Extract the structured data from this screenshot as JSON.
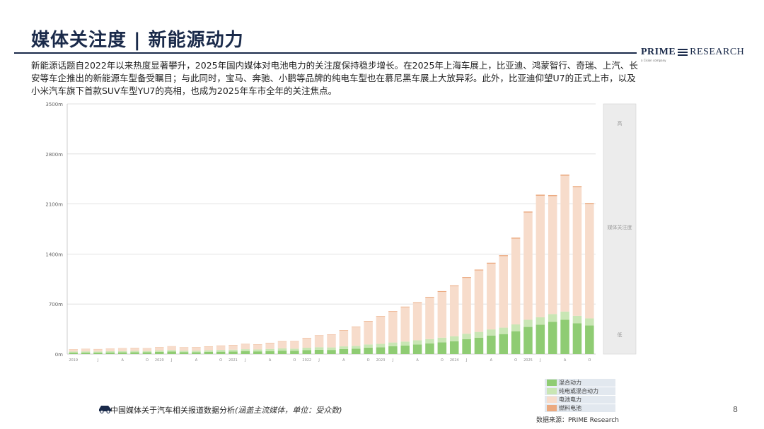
{
  "page": {
    "title": "媒体关注度 | 新能源动力",
    "intro": "新能源话题自2022年以来热度显著攀升，2025年国内媒体对电池电力的关注度保持稳步增长。在2025年上海车展上，比亚迪、鸿蒙智行、奇瑞、上汽、长安等车企推出的新能源车型备受瞩目；与此同时，宝马、奔驰、小鹏等品牌的纯电车型也在慕尼黑车展上大放异彩。此外，比亚迪仰望U7的正式上市，以及小米汽车旗下首款SUV车型YU7的亮相，也成为2025年车市全年的关注焦点。",
    "brand": {
      "name_bold": "PRIME",
      "name_rest": "RESEARCH",
      "sub": "a Cision company"
    },
    "footnote_main": "中国媒体关于汽车相关报道数据分析",
    "footnote_note": "(涵盖主流媒体，单位：受众数)",
    "source": "数据来源：PRIME Research",
    "page_number": "8",
    "side_panel": {
      "top_label": "高",
      "mid_label": "媒体关注度",
      "bottom_label": "低"
    }
  },
  "colors": {
    "hybrid": "#8fcc73",
    "phev": "#c9e6b4",
    "ev": "#f7dccb",
    "fuel": "#eba97f",
    "grid": "#d9d9d9",
    "panel": "#ececec"
  },
  "chart_data": {
    "type": "bar",
    "stacked": true,
    "ylim": [
      0,
      3500
    ],
    "y_ticks": [
      "0m",
      "700m",
      "1400m",
      "2100m",
      "2800m",
      "3500m"
    ],
    "x_tick_labels": [
      "2019",
      "",
      "J",
      "",
      "A",
      "",
      "O",
      "2020",
      "J",
      "",
      "A",
      "",
      "O",
      "2021",
      "J",
      "",
      "A",
      "",
      "O",
      "2022",
      "J",
      "",
      "A",
      "",
      "O",
      "2023",
      "J",
      "",
      "A",
      "",
      "O",
      "2024",
      "J",
      "",
      "A",
      "",
      "O",
      "2025",
      "J",
      "",
      "A",
      "",
      "O"
    ],
    "year_labels": [
      "2019",
      "2020",
      "2021",
      "2022",
      "2023",
      "2024",
      "2025"
    ],
    "series": [
      {
        "name": "混合动力",
        "values": [
          20,
          22,
          21,
          23,
          24,
          26,
          25,
          30,
          35,
          28,
          27,
          30,
          33,
          36,
          40,
          38,
          42,
          48,
          45,
          55,
          60,
          58,
          70,
          75,
          90,
          95,
          110,
          120,
          135,
          150,
          165,
          180,
          210,
          230,
          260,
          280,
          320,
          380,
          410,
          450,
          480,
          430,
          400
        ]
      },
      {
        "name": "纯电或混合动力",
        "values": [
          15,
          16,
          15,
          17,
          18,
          19,
          18,
          20,
          22,
          20,
          21,
          23,
          25,
          26,
          28,
          27,
          30,
          32,
          31,
          34,
          36,
          35,
          38,
          40,
          45,
          48,
          52,
          55,
          58,
          60,
          65,
          70,
          75,
          80,
          85,
          90,
          95,
          100,
          105,
          110,
          115,
          105,
          100
        ]
      },
      {
        "name": "电池电力",
        "values": [
          30,
          33,
          32,
          35,
          38,
          40,
          38,
          44,
          50,
          45,
          46,
          52,
          58,
          62,
          70,
          68,
          80,
          95,
          100,
          130,
          160,
          175,
          220,
          260,
          320,
          380,
          430,
          480,
          520,
          580,
          640,
          700,
          780,
          860,
          920,
          1000,
          1200,
          1500,
          1700,
          1650,
          1900,
          1800,
          1600
        ]
      },
      {
        "name": "燃料电池",
        "values": [
          2,
          2,
          2,
          2,
          3,
          3,
          3,
          3,
          3,
          3,
          3,
          4,
          4,
          4,
          4,
          4,
          5,
          5,
          5,
          6,
          6,
          6,
          7,
          7,
          8,
          8,
          9,
          9,
          10,
          10,
          11,
          11,
          12,
          12,
          13,
          13,
          14,
          14,
          15,
          15,
          16,
          15,
          14
        ]
      }
    ]
  }
}
